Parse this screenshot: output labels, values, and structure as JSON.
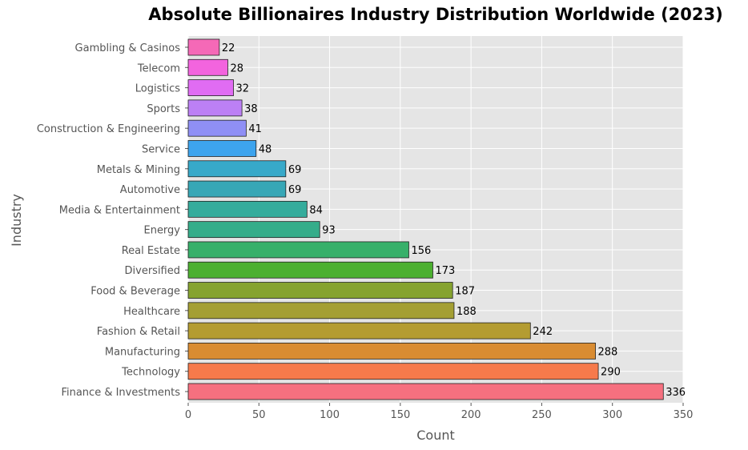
{
  "chart_data": {
    "type": "bar",
    "orientation": "horizontal",
    "title": "Absolute Billionaires Industry Distribution Worldwide (2023)",
    "xlabel": "Count",
    "ylabel": "Industry",
    "xlim": [
      0,
      350
    ],
    "xticks": [
      0,
      50,
      100,
      150,
      200,
      250,
      300,
      350
    ],
    "grid": true,
    "categories": [
      "Gambling & Casinos",
      "Telecom",
      "Logistics",
      "Sports",
      "Construction & Engineering",
      "Service",
      "Metals & Mining",
      "Automotive",
      "Media & Entertainment",
      "Energy",
      "Real Estate",
      "Diversified",
      "Food & Beverage",
      "Healthcare",
      "Fashion & Retail",
      "Manufacturing",
      "Technology",
      "Finance & Investments"
    ],
    "values": [
      22,
      28,
      32,
      38,
      41,
      48,
      69,
      69,
      84,
      93,
      156,
      173,
      187,
      188,
      242,
      288,
      290,
      336
    ],
    "colors": [
      "#f569b7",
      "#f364de",
      "#e06cf3",
      "#bc80f5",
      "#8f8ff5",
      "#3da4ee",
      "#37a9c9",
      "#37a7b6",
      "#35ac9c",
      "#35ad8a",
      "#37b06a",
      "#4cb030",
      "#86a32f",
      "#a49f33",
      "#b49c31",
      "#d98c32",
      "#f67a4b",
      "#f6707f"
    ]
  }
}
